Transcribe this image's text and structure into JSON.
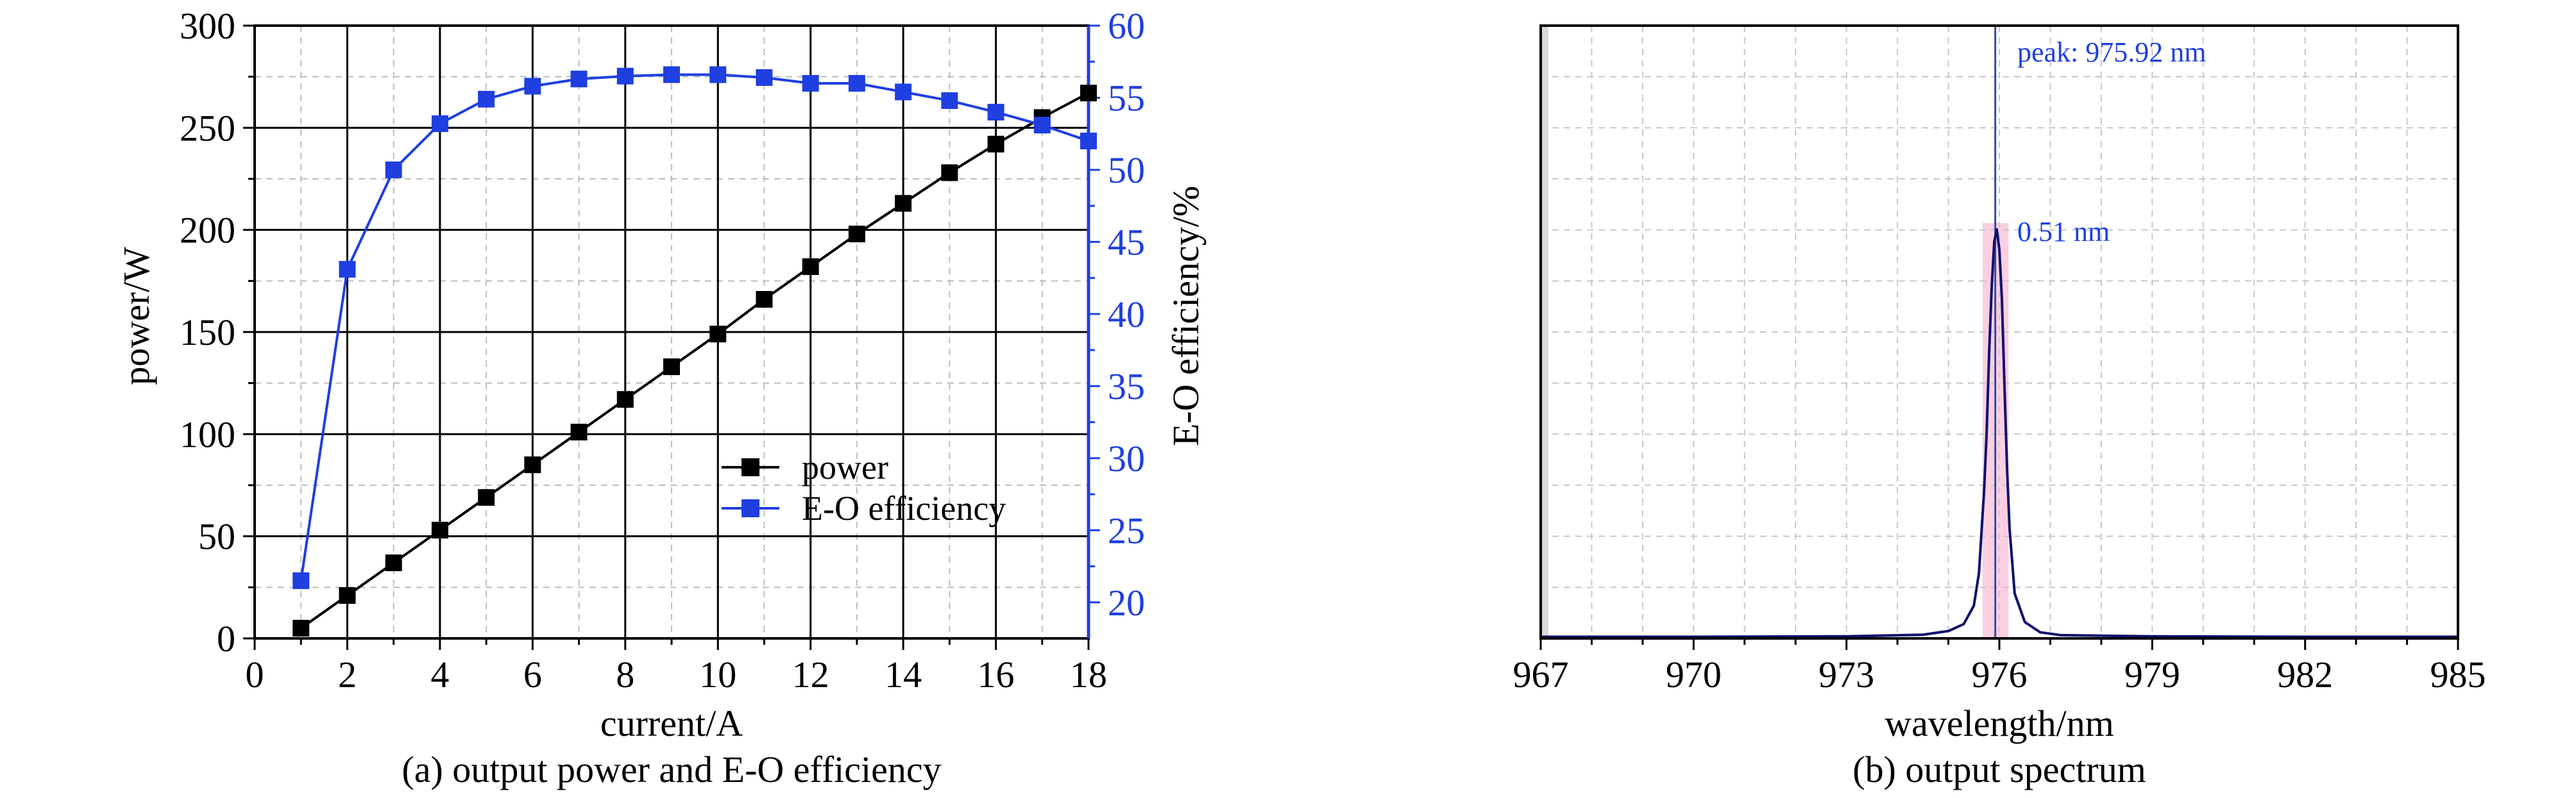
{
  "chart_data": [
    {
      "type": "line",
      "caption": "(a) output power and E-O efficiency",
      "xlabel": "current/A",
      "ylabel": "power/W",
      "y2label": "E-O efficiency/%",
      "xlim": [
        0,
        18
      ],
      "ylim": [
        0,
        300
      ],
      "y2lim": [
        17.5,
        60
      ],
      "xticks": [
        0,
        2,
        4,
        6,
        8,
        10,
        12,
        14,
        16,
        18
      ],
      "yticks": [
        0,
        50,
        100,
        150,
        200,
        250,
        300
      ],
      "y2ticks": [
        20,
        25,
        30,
        35,
        40,
        45,
        50,
        55,
        60
      ],
      "grid": true,
      "legend_position": "center-right",
      "x": [
        1,
        2,
        3,
        4,
        5,
        6,
        7,
        8,
        9,
        10,
        11,
        12,
        13,
        14,
        15,
        16,
        17,
        18
      ],
      "series": [
        {
          "name": "power",
          "axis": "left",
          "color": "#000000",
          "values": [
            5,
            21,
            37,
            53,
            69,
            85,
            101,
            117,
            133,
            149,
            166,
            182,
            198,
            213,
            228,
            242,
            255,
            267
          ]
        },
        {
          "name": "E-O efficiency",
          "axis": "right",
          "color": "#1f3fe0",
          "values": [
            21.5,
            43.1,
            50.0,
            53.2,
            54.9,
            55.8,
            56.3,
            56.5,
            56.6,
            56.6,
            56.4,
            56.0,
            56.0,
            55.4,
            54.8,
            54.0,
            53.1,
            52.0
          ]
        }
      ]
    },
    {
      "type": "line",
      "caption": "(b) output spectrum",
      "xlabel": "wavelength/nm",
      "xlim": [
        967,
        985
      ],
      "xticks": [
        967,
        970,
        973,
        976,
        979,
        982,
        985
      ],
      "ylim": [
        0,
        1
      ],
      "grid": true,
      "color": "#10106e",
      "highlight_color": "#f5a8c8",
      "peak_label": "peak: 975.92 nm",
      "fwhm_label": "0.51 nm",
      "peak_wavelength": 975.92,
      "fwhm": 0.51,
      "band": [
        975.67,
        976.18
      ],
      "spectrum": {
        "x": [
          967.0,
          970.0,
          973.0,
          974.5,
          975.0,
          975.3,
          975.5,
          975.6,
          975.7,
          975.75,
          975.8,
          975.85,
          975.9,
          975.95,
          976.0,
          976.05,
          976.1,
          976.15,
          976.2,
          976.3,
          976.5,
          976.8,
          977.2,
          979.0,
          982.0,
          985.0
        ],
        "y": [
          0.004,
          0.004,
          0.005,
          0.009,
          0.018,
          0.035,
          0.08,
          0.16,
          0.36,
          0.5,
          0.7,
          0.86,
          0.97,
          1.0,
          0.95,
          0.83,
          0.62,
          0.42,
          0.27,
          0.11,
          0.04,
          0.015,
          0.008,
          0.005,
          0.004,
          0.004
        ]
      }
    }
  ]
}
